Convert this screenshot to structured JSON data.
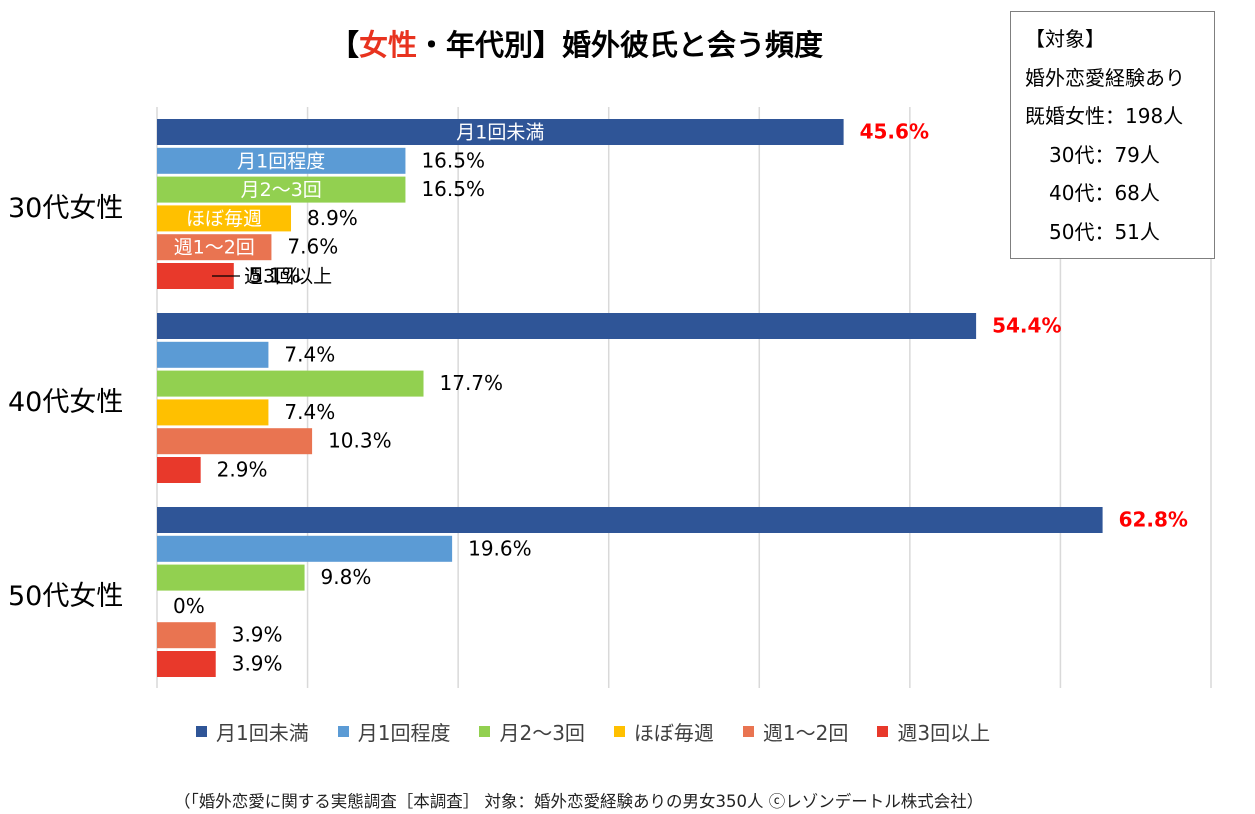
{
  "title": {
    "prefix": "【",
    "accent": "女性",
    "suffix": "・年代別】婚外彼氏と会う頻度"
  },
  "info_box": {
    "heading": "【対象】",
    "line1": "婚外恋愛経験あり",
    "line2": "既婚女性：198人",
    "line3": "30代：79人",
    "line4": "40代：68人",
    "line5": "50代：51人"
  },
  "source": "（「婚外恋愛に関する実態調査［本調査］ 対象：婚外恋愛経験ありの男女350人 ⓒレゾンデートル株式会社）",
  "colors": {
    "highlight_label": "#ff0000"
  },
  "chart_data": {
    "type": "bar",
    "orientation": "horizontal",
    "categories": [
      "30代女性",
      "40代女性",
      "50代女性"
    ],
    "series": [
      {
        "name": "月1回未満",
        "color": "#2f5597",
        "values": [
          45.6,
          54.4,
          62.8
        ],
        "labels": [
          "45.6%",
          "54.4%",
          "62.8%"
        ]
      },
      {
        "name": "月1回程度",
        "color": "#5b9bd5",
        "values": [
          16.5,
          7.4,
          19.6
        ],
        "labels": [
          "16.5%",
          "7.4%",
          "19.6%"
        ]
      },
      {
        "name": "月2～3回",
        "color": "#92d050",
        "values": [
          16.5,
          17.7,
          9.8
        ],
        "labels": [
          "16.5%",
          "17.7%",
          "9.8%"
        ]
      },
      {
        "name": "ほぼ毎週",
        "color": "#ffc000",
        "values": [
          8.9,
          7.4,
          0
        ],
        "labels": [
          "8.9%",
          "7.4%",
          "0%"
        ]
      },
      {
        "name": "週1～2回",
        "color": "#e97451",
        "values": [
          7.6,
          10.3,
          3.9
        ],
        "labels": [
          "7.6%",
          "10.3%",
          "3.9%"
        ]
      },
      {
        "name": "週3回以上",
        "color": "#e8392b",
        "values": [
          5.1,
          2.9,
          3.9
        ],
        "labels": [
          "5.1%",
          "2.9%",
          "3.9%"
        ]
      }
    ],
    "xlim": [
      0,
      70
    ],
    "grid": true,
    "legend": "bottom",
    "in_bar_labels_group": 0,
    "highlight_series": 0
  }
}
